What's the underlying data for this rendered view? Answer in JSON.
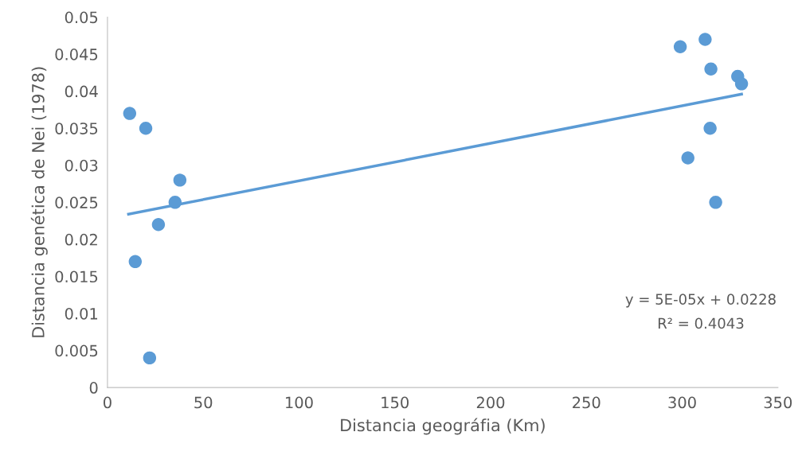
{
  "chart_data": {
    "type": "scatter",
    "xlabel": "Distancia geográfia (Km)",
    "ylabel": "Distancia genética de Nei (1978)",
    "xlim": [
      0,
      350
    ],
    "xticks": [
      0,
      50,
      100,
      150,
      200,
      250,
      300,
      350
    ],
    "ylim": [
      0,
      0.05
    ],
    "yticks": [
      0,
      0.005,
      0.01,
      0.015,
      0.02,
      0.025,
      0.03,
      0.035,
      0.04,
      0.045,
      0.05
    ],
    "grid": false,
    "series": [
      {
        "color": "#5b9bd5",
        "marker": "circle",
        "x": [
          11.6,
          20,
          14.5,
          22,
          26.6,
          35.3,
          37.8,
          299,
          312,
          315,
          303,
          314.6,
          317.5,
          329,
          331
        ],
        "values": [
          0.037,
          0.035,
          0.017,
          0.004,
          0.022,
          0.025,
          0.028,
          0.046,
          0.047,
          0.043,
          0.031,
          0.035,
          0.025,
          0.042,
          0.041
        ]
      },
      {
        "type": "line",
        "color": "#5b9bd5",
        "line_style": "solid",
        "marker": "none",
        "x": [
          11,
          331
        ],
        "values": [
          0.0234,
          0.0396
        ]
      }
    ],
    "annotations": [
      "y = 5E-05x + 0.0228",
      "R² = 0.4043"
    ]
  }
}
